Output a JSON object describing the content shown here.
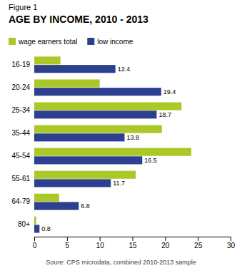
{
  "chart_data": {
    "type": "bar",
    "orientation": "horizontal",
    "subtitle": "Figure 1",
    "title": "AGE BY INCOME, 2010 - 2013",
    "categories": [
      "16-19",
      "20-24",
      "25-34",
      "35-44",
      "45-54",
      "55-61",
      "64-79",
      "80+"
    ],
    "series": [
      {
        "name": "wage earners total",
        "color": "#aac828",
        "values": [
          4.0,
          10.0,
          22.5,
          19.5,
          24.0,
          15.5,
          3.8,
          0.3
        ]
      },
      {
        "name": "low income",
        "color": "#2d3f8f",
        "values": [
          12.4,
          19.4,
          18.7,
          13.8,
          16.5,
          11.7,
          6.8,
          0.8
        ],
        "data_labels": true
      }
    ],
    "xlim": [
      0,
      30
    ],
    "xticks": [
      0,
      5,
      10,
      15,
      20,
      25,
      30
    ],
    "legend": "top",
    "grid": false,
    "annotations": [
      "Soure: CPS microdata, combined 2010-2013 sample"
    ]
  }
}
